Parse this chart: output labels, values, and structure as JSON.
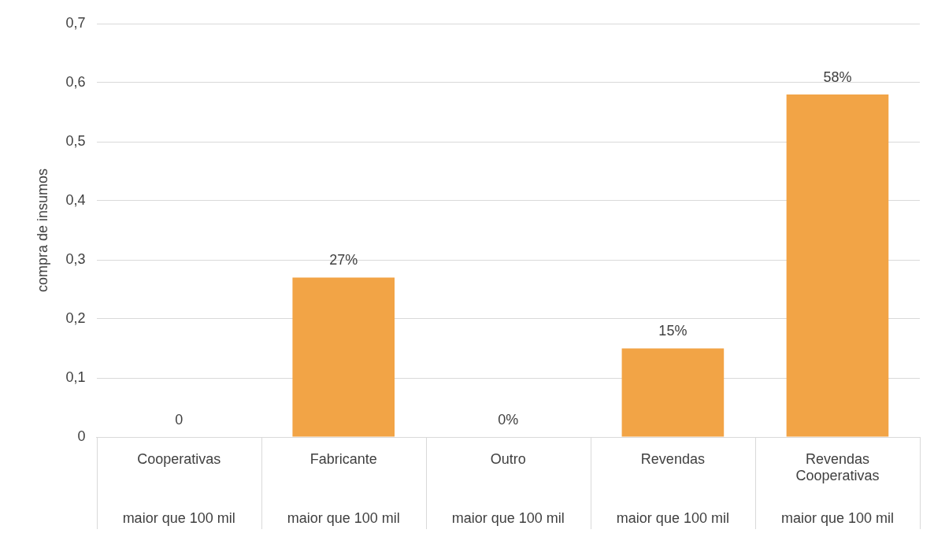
{
  "chart_data": {
    "type": "bar",
    "ylabel": "compra de insumos",
    "categories": [
      "Cooperativas",
      "Fabricante",
      "Outro",
      "Revendas",
      "Revendas Cooperativas"
    ],
    "values": [
      0,
      0.27,
      0,
      0.15,
      0.58
    ],
    "value_labels": [
      "0",
      "27%",
      "0%",
      "15%",
      "58%"
    ],
    "color": "#f2a446",
    "ylim": [
      0,
      0.7
    ],
    "yticks": [
      0,
      {
        "value": 0.1,
        "label": "0,1"
      },
      {
        "value": 0.2,
        "label": "0,2"
      },
      {
        "value": 0.3,
        "label": "0,3"
      },
      {
        "value": 0.4,
        "label": "0,4"
      },
      {
        "value": 0.5,
        "label": "0,5"
      },
      {
        "value": 0.6,
        "label": "0,6"
      },
      {
        "value": 0.7,
        "label": "0,7"
      }
    ],
    "grid": "y",
    "legend": false,
    "annotations": [
      "maior que 100 mil",
      "maior que 100 mil",
      "maior que 100 mil",
      "maior que 100 mil",
      "maior que 100 mil"
    ]
  }
}
